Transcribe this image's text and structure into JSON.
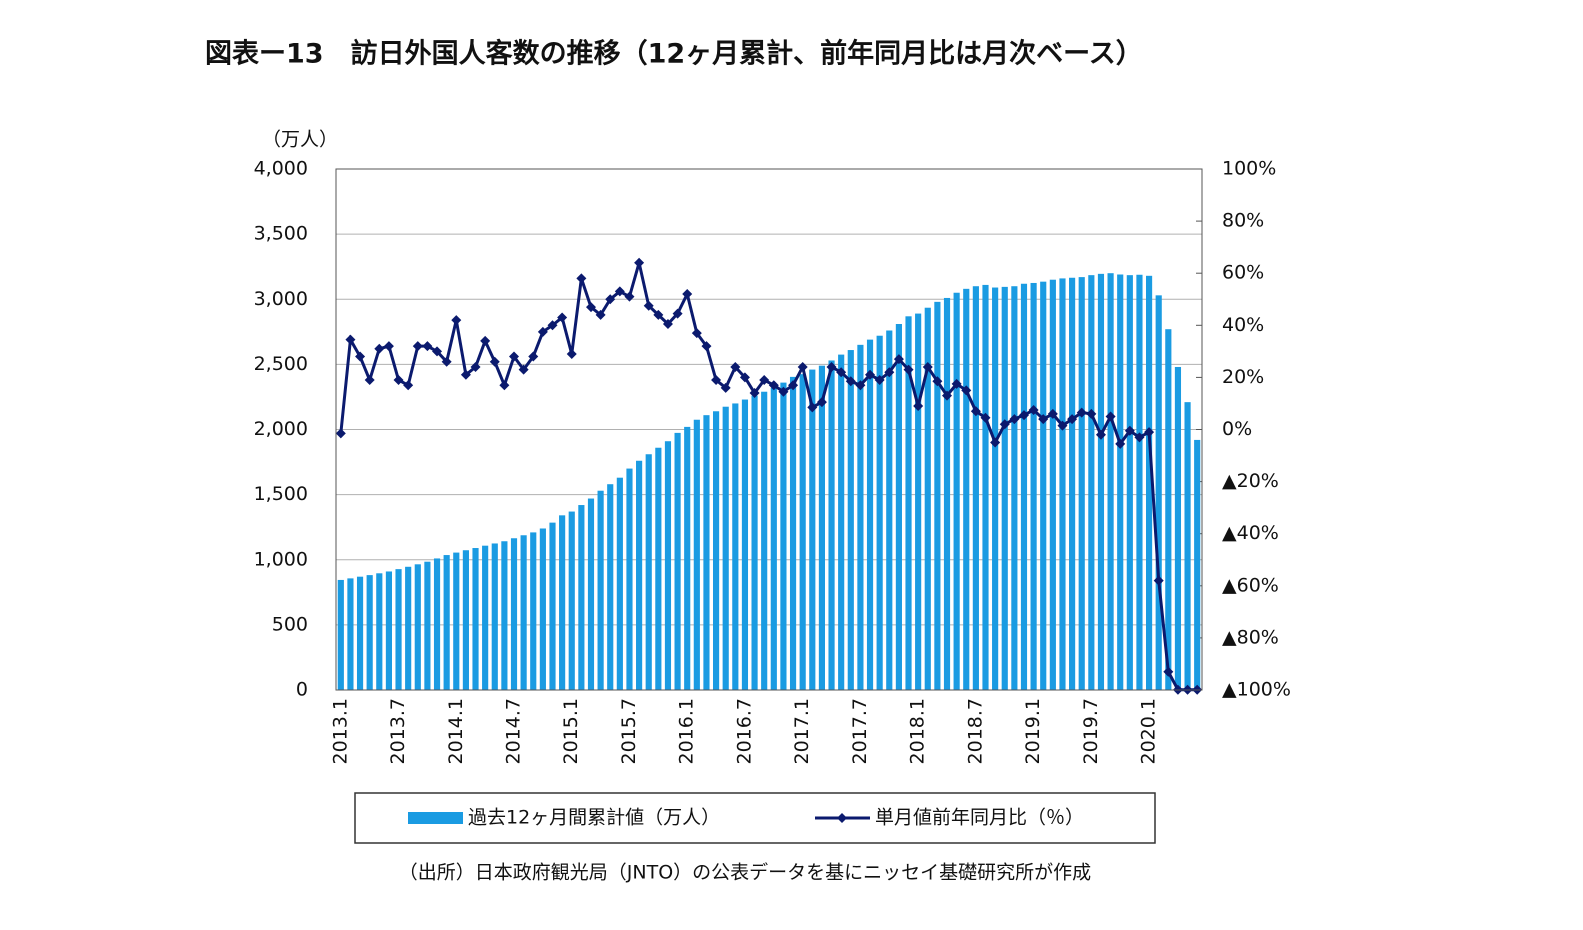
{
  "chart_data": {
    "type": "bar",
    "title": "図表ー13　訪日外国人客数の推移（12ヶ月累計、前年同月比は月次ベース）",
    "y_label": "（万人）",
    "source": "（出所）日本政府観光局（JNTO）の公表データを基にニッセイ基礎研究所が作成",
    "categories": [
      "2013.1",
      null,
      null,
      null,
      null,
      null,
      "2013.7",
      null,
      null,
      null,
      null,
      null,
      "2014.1",
      null,
      null,
      null,
      null,
      null,
      "2014.7",
      null,
      null,
      null,
      null,
      null,
      "2015.1",
      null,
      null,
      null,
      null,
      null,
      "2015.7",
      null,
      null,
      null,
      null,
      null,
      "2016.1",
      null,
      null,
      null,
      null,
      null,
      "2016.7",
      null,
      null,
      null,
      null,
      null,
      "2017.1",
      null,
      null,
      null,
      null,
      null,
      "2017.7",
      null,
      null,
      null,
      null,
      null,
      "2018.1",
      null,
      null,
      null,
      null,
      null,
      "2018.7",
      null,
      null,
      null,
      null,
      null,
      "2019.1",
      null,
      null,
      null,
      null,
      null,
      "2019.7",
      null,
      null,
      null,
      null,
      null,
      "2020.1",
      null,
      null,
      null,
      null,
      null
    ],
    "series": [
      {
        "name": "過去12ヶ月間累計値（万人）",
        "type": "bar",
        "color": "#1a9be2",
        "values": [
          845,
          857,
          870,
          882,
          896,
          910,
          928,
          946,
          965,
          985,
          1010,
          1036,
          1055,
          1073,
          1090,
          1108,
          1125,
          1142,
          1165,
          1188,
          1210,
          1240,
          1285,
          1341,
          1370,
          1420,
          1470,
          1530,
          1580,
          1630,
          1700,
          1760,
          1810,
          1860,
          1910,
          1974,
          2020,
          2075,
          2110,
          2140,
          2175,
          2200,
          2230,
          2260,
          2290,
          2320,
          2360,
          2404,
          2425,
          2460,
          2490,
          2530,
          2575,
          2610,
          2650,
          2690,
          2720,
          2760,
          2810,
          2869,
          2890,
          2935,
          2980,
          3010,
          3050,
          3080,
          3100,
          3110,
          3090,
          3095,
          3100,
          3119,
          3125,
          3135,
          3150,
          3160,
          3165,
          3170,
          3185,
          3195,
          3200,
          3190,
          3185,
          3188,
          3180,
          3030,
          2770,
          2480,
          2210,
          1920
        ]
      },
      {
        "name": "単月値前年同月比（％）",
        "type": "line",
        "axis": "y2",
        "color": "#0b1a6e",
        "values": [
          -1.5,
          34.5,
          28,
          19,
          31,
          32,
          19,
          17,
          32,
          32,
          30,
          26,
          42,
          21,
          24,
          34,
          26,
          17,
          28,
          23,
          28,
          37.5,
          40,
          43,
          29,
          58,
          47,
          44,
          50,
          53,
          51,
          64,
          47.5,
          44,
          40.5,
          44.5,
          52,
          37,
          32,
          19,
          16,
          24,
          20,
          14,
          19,
          17,
          14.5,
          17,
          24,
          8.5,
          10.5,
          24,
          22,
          18.5,
          17,
          21,
          19,
          22,
          27,
          23,
          9,
          24,
          18.5,
          13,
          17.5,
          15,
          7,
          4.5,
          -5,
          2,
          4,
          5.5,
          7.5,
          4,
          6,
          1.5,
          4,
          6.5,
          6,
          -2,
          5,
          -5.5,
          -0.5,
          -3,
          -1,
          -58,
          -93,
          -99.9,
          -99.9,
          -99.9
        ]
      }
    ],
    "ylim": [
      0,
      4000
    ],
    "yticks": [
      {
        "value": 0,
        "label": "0"
      },
      {
        "value": 500,
        "label": "500"
      },
      {
        "value": 1000,
        "label": "1,000"
      },
      {
        "value": 1500,
        "label": "1,500"
      },
      {
        "value": 2000,
        "label": "2,000"
      },
      {
        "value": 2500,
        "label": "2,500"
      },
      {
        "value": 3000,
        "label": "3,000"
      },
      {
        "value": 3500,
        "label": "3,500"
      },
      {
        "value": 4000,
        "label": "4,000"
      }
    ],
    "y2lim": [
      -100,
      100
    ],
    "y2ticks": [
      {
        "value": -100,
        "label": "▲100%"
      },
      {
        "value": -80,
        "label": "▲80%"
      },
      {
        "value": -60,
        "label": "▲60%"
      },
      {
        "value": -40,
        "label": "▲40%"
      },
      {
        "value": -20,
        "label": "▲20%"
      },
      {
        "value": 0,
        "label": "0%"
      },
      {
        "value": 20,
        "label": "20%"
      },
      {
        "value": 40,
        "label": "40%"
      },
      {
        "value": 60,
        "label": "60%"
      },
      {
        "value": 80,
        "label": "80%"
      },
      {
        "value": 100,
        "label": "100%"
      }
    ],
    "grid": true
  }
}
